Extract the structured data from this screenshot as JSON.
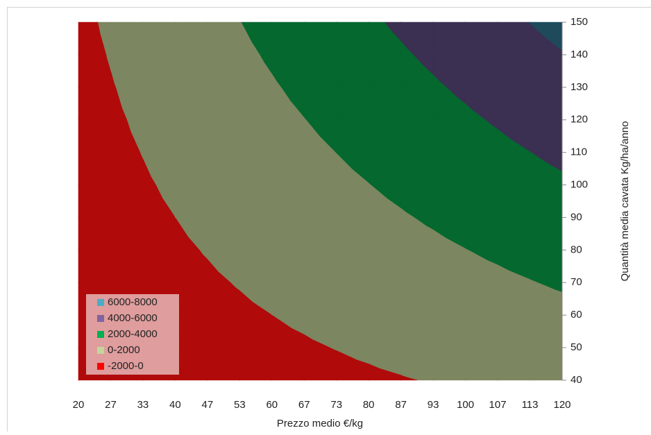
{
  "chart_data": {
    "type": "contour",
    "x_title": "Prezzo medio €/kg",
    "y_title": "Quantità media cavata Kg/ha/anno",
    "categories": [
      "20",
      "27",
      "33",
      "40",
      "47",
      "53",
      "60",
      "67",
      "73",
      "80",
      "87",
      "93",
      "100",
      "107",
      "113",
      "120"
    ],
    "y": [
      40,
      50,
      60,
      70,
      80,
      90,
      100,
      110,
      120,
      130,
      140,
      150
    ],
    "ylim": [
      40,
      150
    ],
    "yticks": [
      40,
      50,
      60,
      70,
      80,
      90,
      100,
      110,
      120,
      130,
      140,
      150
    ],
    "y_axis_side": "right",
    "legend_position": "lower left",
    "z": [
      [
        -1260,
        -1140,
        -1020,
        -900,
        -780,
        -660,
        -540,
        -420,
        -300,
        -180,
        -60,
        60,
        180,
        300,
        420,
        540
      ],
      [
        -1170,
        -1020,
        -870,
        -720,
        -570,
        -420,
        -270,
        -120,
        30,
        180,
        330,
        480,
        630,
        780,
        930,
        1080
      ],
      [
        -1080,
        -900,
        -720,
        -540,
        -360,
        -180,
        0,
        180,
        360,
        540,
        720,
        900,
        1080,
        1260,
        1440,
        1620
      ],
      [
        -990,
        -780,
        -570,
        -360,
        -150,
        60,
        270,
        480,
        690,
        900,
        1110,
        1320,
        1530,
        1740,
        1950,
        2160
      ],
      [
        -900,
        -660,
        -420,
        -180,
        60,
        300,
        540,
        780,
        1020,
        1260,
        1500,
        1740,
        1980,
        2220,
        2460,
        2700
      ],
      [
        -810,
        -540,
        -270,
        0,
        270,
        540,
        810,
        1080,
        1350,
        1620,
        1890,
        2160,
        2430,
        2700,
        2970,
        3240
      ],
      [
        -720,
        -420,
        -120,
        180,
        480,
        780,
        1080,
        1380,
        1680,
        1980,
        2280,
        2580,
        2880,
        3180,
        3480,
        3780
      ],
      [
        -630,
        -300,
        30,
        360,
        690,
        1020,
        1350,
        1680,
        2010,
        2340,
        2670,
        3000,
        3330,
        3660,
        3990,
        4320
      ],
      [
        -540,
        -180,
        180,
        540,
        900,
        1260,
        1620,
        1980,
        2340,
        2700,
        3060,
        3420,
        3780,
        4140,
        4500,
        4860
      ],
      [
        -450,
        -60,
        330,
        720,
        1110,
        1500,
        1890,
        2280,
        2670,
        3060,
        3450,
        3840,
        4230,
        4620,
        5010,
        5400
      ],
      [
        -360,
        60,
        480,
        900,
        1320,
        1740,
        2160,
        2580,
        3000,
        3420,
        3840,
        4260,
        4680,
        5100,
        5520,
        5940
      ],
      [
        -270,
        180,
        630,
        1080,
        1530,
        1980,
        2430,
        2880,
        3330,
        3780,
        4230,
        4680,
        5130,
        5580,
        6030,
        6480
      ]
    ],
    "bands": [
      {
        "name": "6000-8000",
        "min": 6000,
        "max": 8000,
        "color": "#4bacc6",
        "fill": "#1e4a5c"
      },
      {
        "name": "4000-6000",
        "min": 4000,
        "max": 6000,
        "color": "#8064a2",
        "fill": "#3b2f52"
      },
      {
        "name": "2000-4000",
        "min": 2000,
        "max": 4000,
        "color": "#00b050",
        "fill": "#04682f"
      },
      {
        "name": "0-2000",
        "min": 0,
        "max": 2000,
        "color": "#c3d69b",
        "fill": "#7c8660"
      },
      {
        "name": "-2000-0",
        "min": -2000,
        "max": 0,
        "color": "#ff0000",
        "fill": "#b00a0a"
      }
    ]
  }
}
